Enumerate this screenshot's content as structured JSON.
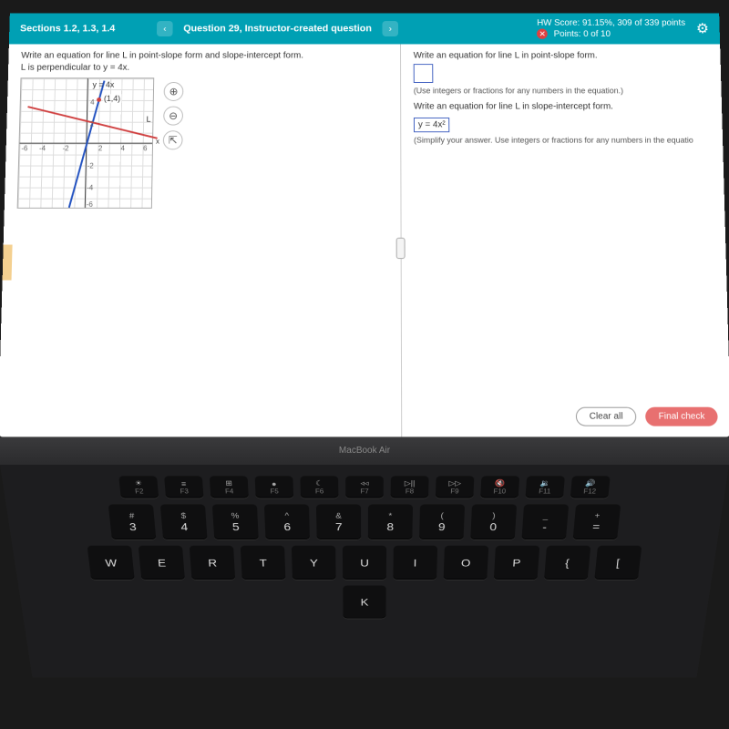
{
  "header": {
    "sections_label": "Sections 1.2, 1.3, 1.4",
    "prev_icon": "‹",
    "next_icon": "›",
    "question_label": "Question 29, Instructor-created question",
    "score_label": "HW Score: 91.15%, 309 of 339 points",
    "points_label": "Points: 0 of 10",
    "gear_icon": "⚙"
  },
  "problem": {
    "line1": "Write an equation for line L in point-slope form and slope-intercept form.",
    "line2": "L is perpendicular to y = 4x.",
    "graph": {
      "equation_label": "y = 4x",
      "point_label": "(1,4)",
      "line_label": "L",
      "x_label": "x",
      "ticks": [
        "-6",
        "-4",
        "-2",
        "2",
        "4",
        "6",
        "2",
        "4",
        "-2",
        "-4",
        "-6"
      ]
    },
    "tools": {
      "zoom_in": "⊕",
      "zoom_out": "⊖",
      "popout": "⇱"
    }
  },
  "answers": {
    "prompt1": "Write an equation for line L in point-slope form.",
    "hint1": "(Use integers or fractions for any numbers in the equation.)",
    "prompt2": "Write an equation for line L in slope-intercept form.",
    "answer2": "y = 4x²",
    "hint2": "(Simplify your answer. Use integers or fractions for any numbers in the equatio"
  },
  "buttons": {
    "clear": "Clear all",
    "final": "Final check"
  },
  "bezel": {
    "label": "MacBook Air"
  },
  "keyboard": {
    "fn_row": [
      {
        "icon": "☀",
        "sub": "F2"
      },
      {
        "icon": "≡",
        "sub": "F3"
      },
      {
        "icon": "⊞",
        "sub": "F4"
      },
      {
        "icon": "●",
        "sub": "F5"
      },
      {
        "icon": "☾",
        "sub": "F6"
      },
      {
        "icon": "◃◃",
        "sub": "F7"
      },
      {
        "icon": "▷||",
        "sub": "F8"
      },
      {
        "icon": "▷▷",
        "sub": "F9"
      },
      {
        "icon": "🔇",
        "sub": "F10"
      },
      {
        "icon": "🔉",
        "sub": "F11"
      },
      {
        "icon": "🔊",
        "sub": "F12"
      }
    ],
    "num_row": [
      {
        "top": "#",
        "main": "3"
      },
      {
        "top": "$",
        "main": "4"
      },
      {
        "top": "%",
        "main": "5"
      },
      {
        "top": "^",
        "main": "6"
      },
      {
        "top": "&",
        "main": "7"
      },
      {
        "top": "*",
        "main": "8"
      },
      {
        "top": "(",
        "main": "9"
      },
      {
        "top": ")",
        "main": "0"
      },
      {
        "top": "_",
        "main": "-"
      },
      {
        "top": "+",
        "main": "="
      }
    ],
    "letter_row1": [
      "W",
      "E",
      "R",
      "T",
      "Y",
      "U",
      "I",
      "O",
      "P",
      "{",
      "["
    ],
    "letter_row2": [
      "K"
    ]
  }
}
